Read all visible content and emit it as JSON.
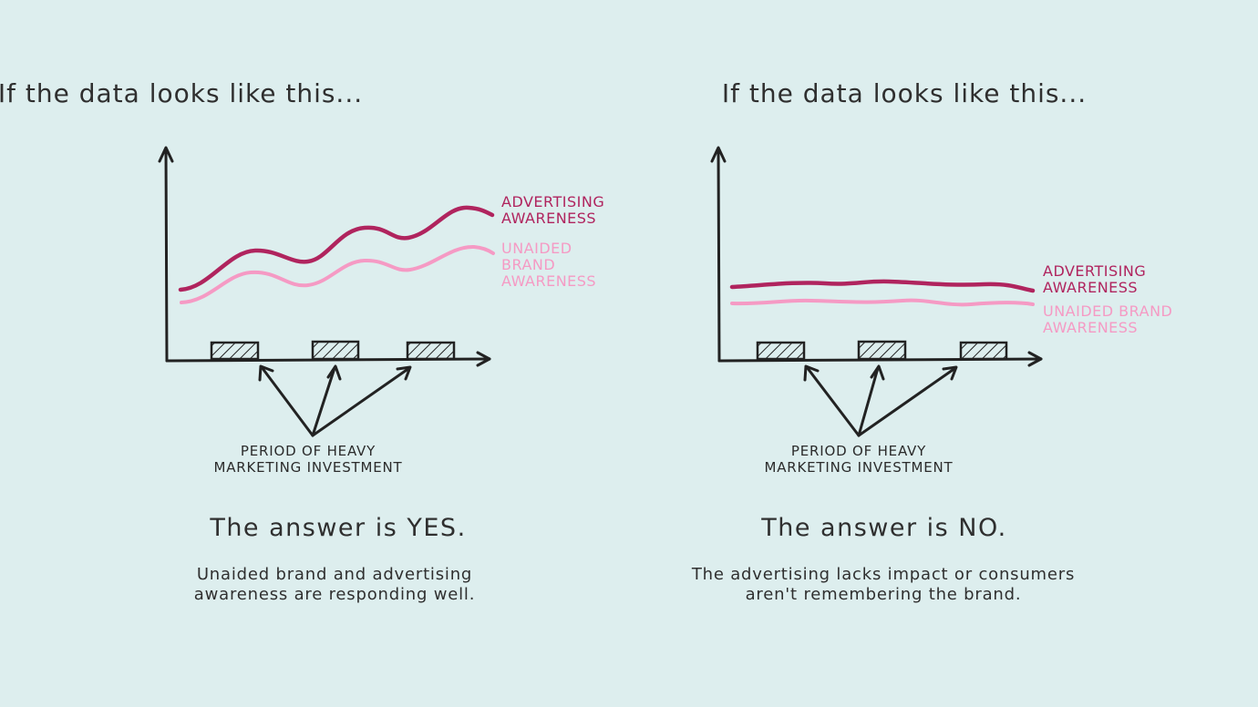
{
  "colors": {
    "background": "#ddeeee",
    "advertising": "#b0245e",
    "unaided": "#f59ac4",
    "ink": "#222222"
  },
  "panels": [
    {
      "heading": "If the data looks like this...",
      "series": [
        {
          "name": "ADVERTISING\nAWARENESS",
          "color": "#b0245e"
        },
        {
          "name": "UNAIDED BRAND\nAWARENESS",
          "color": "#f59ac4"
        }
      ],
      "period_label": "PERIOD OF HEAVY\nMARKETING INVESTMENT",
      "answer": "The answer is YES.",
      "description": "Unaided brand and advertising\nawareness are responding well."
    },
    {
      "heading": "If the data looks like this...",
      "series": [
        {
          "name": "ADVERTISING\nAWARENESS",
          "color": "#b0245e"
        },
        {
          "name": "UNAIDED BRAND\nAWARENESS",
          "color": "#f59ac4"
        }
      ],
      "period_label": "PERIOD OF HEAVY\nMARKETING INVESTMENT",
      "answer": "The answer is NO.",
      "description": "The advertising lacks impact or consumers\naren't remembering the brand."
    }
  ]
}
